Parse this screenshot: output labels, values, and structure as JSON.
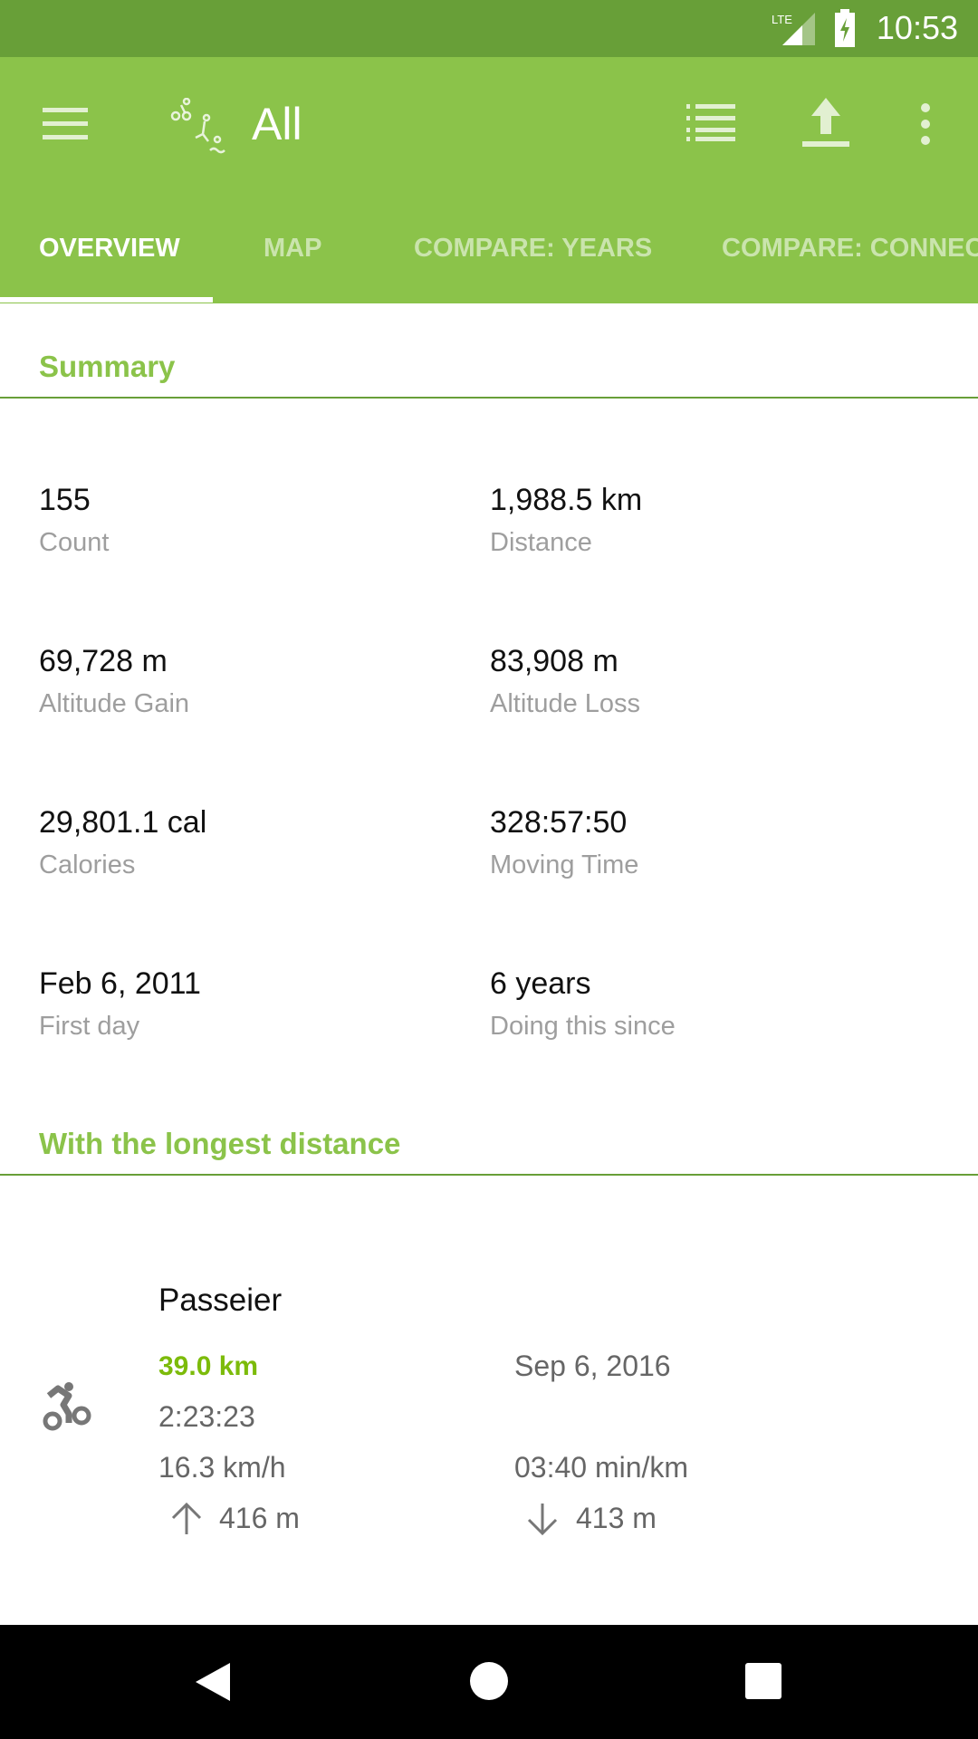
{
  "status_bar": {
    "network": "LTE",
    "time": "10:53"
  },
  "app_bar": {
    "title": "All"
  },
  "tabs": [
    {
      "label": "OVERVIEW",
      "active": true
    },
    {
      "label": "MAP"
    },
    {
      "label": "COMPARE: YEARS"
    },
    {
      "label": "COMPARE: CONNEC"
    }
  ],
  "summary": {
    "header": "Summary",
    "stats": [
      {
        "value": "155",
        "label": "Count"
      },
      {
        "value": "1,988.5 km",
        "label": "Distance"
      },
      {
        "value": "69,728 m",
        "label": "Altitude Gain"
      },
      {
        "value": "83,908 m",
        "label": "Altitude Loss"
      },
      {
        "value": "29,801.1 cal",
        "label": "Calories"
      },
      {
        "value": "328:57:50",
        "label": "Moving Time"
      },
      {
        "value": "Feb 6, 2011",
        "label": "First day"
      },
      {
        "value": "6 years",
        "label": "Doing this since"
      }
    ]
  },
  "longest": {
    "header": "With the longest distance",
    "activity": {
      "name": "Passeier",
      "distance": "39.0 km",
      "date": "Sep 6, 2016",
      "duration": "2:23:23",
      "speed": "16.3 km/h",
      "pace": "03:40 min/km",
      "ascent": "416 m",
      "descent": "413 m",
      "icon": "bike-icon"
    }
  },
  "colors": {
    "status_bar": "#689f38",
    "toolbar": "#8bc34a",
    "accent_text": "#8bc34a",
    "distance_text": "#7cbb0a"
  }
}
